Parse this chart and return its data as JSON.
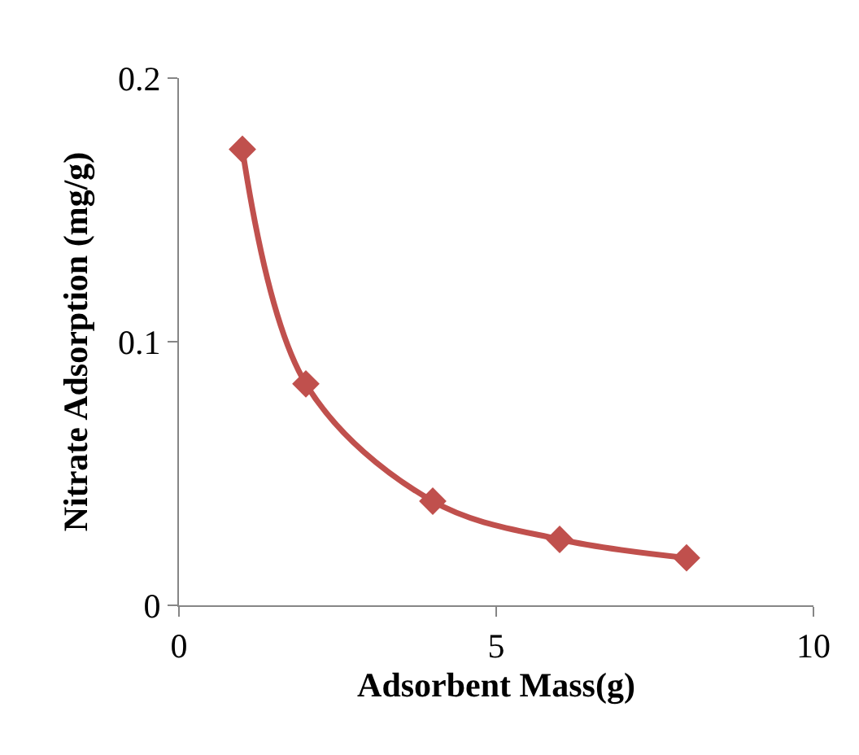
{
  "chart_data": {
    "type": "line",
    "xlabel": "Adsorbent Mass(g)",
    "ylabel": "Nitrate Adsorption (mg/g)",
    "x": [
      1,
      2,
      4,
      6,
      8
    ],
    "series": [
      {
        "color": "#c0504d",
        "values": [
          0.173,
          0.084,
          0.0395,
          0.025,
          0.018
        ]
      }
    ],
    "xlim": [
      0,
      10
    ],
    "xticks": [
      0,
      5,
      10
    ],
    "ylim": [
      0,
      0.2
    ],
    "yticks": [
      0,
      0.1,
      0.2
    ],
    "marker": "diamond",
    "line_style": "solid"
  }
}
